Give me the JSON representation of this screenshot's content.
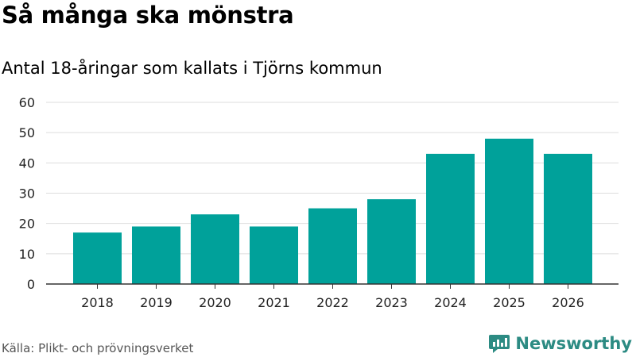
{
  "title": "Så många ska mönstra",
  "subtitle": "Antal 18-åringar som kallats i Tjörns kommun",
  "source": "Källa: Plikt- och prövningsverket",
  "brand": "Newsworthy",
  "colors": {
    "bar": "#00a19a",
    "grid": "#dddddd",
    "axis": "#333333",
    "brand": "#2c8b83"
  },
  "chart_data": {
    "type": "bar",
    "title": "Så många ska mönstra",
    "subtitle": "Antal 18-åringar som kallats i Tjörns kommun",
    "xlabel": "",
    "ylabel": "",
    "categories": [
      "2018",
      "2019",
      "2020",
      "2021",
      "2022",
      "2023",
      "2024",
      "2025",
      "2026"
    ],
    "values": [
      17,
      19,
      23,
      19,
      25,
      28,
      43,
      48,
      43
    ],
    "ylim": [
      0,
      60
    ],
    "yticks": [
      0,
      10,
      20,
      30,
      40,
      50,
      60
    ],
    "grid": true,
    "legend": "none"
  }
}
